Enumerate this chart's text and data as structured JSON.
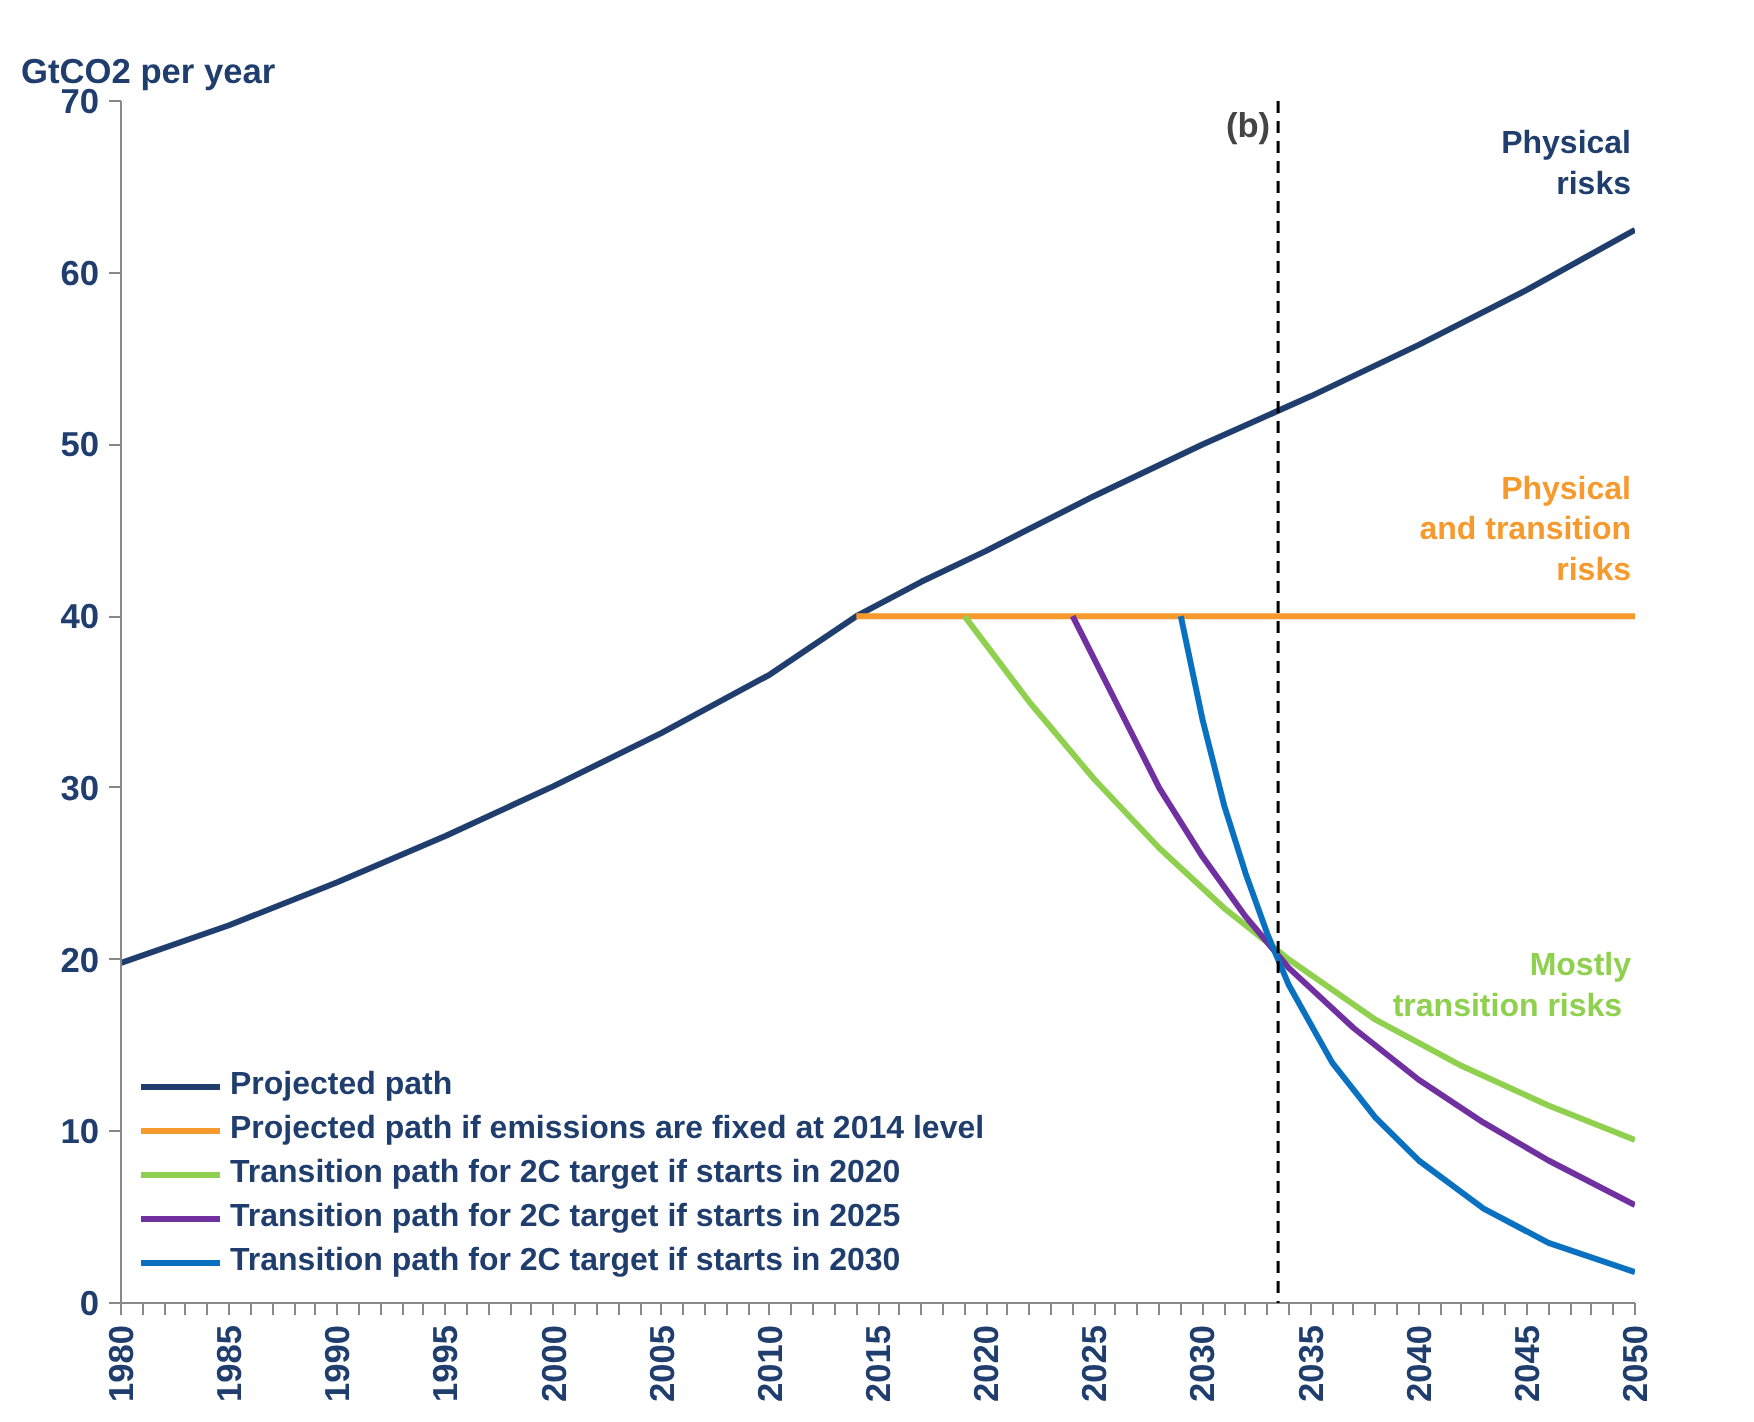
{
  "chart_data": {
    "type": "line",
    "ylabel": "GtCO2 per year",
    "xlim": [
      1980,
      2050
    ],
    "ylim": [
      0,
      70
    ],
    "xticks": [
      1980,
      {
        "value": 1981,
        "label": null
      },
      {
        "value": 1982,
        "label": null
      },
      {
        "value": 1983,
        "label": null
      },
      {
        "value": 1984,
        "label": null
      },
      1985,
      {
        "value": 1986,
        "label": null
      },
      {
        "value": 1987,
        "label": null
      },
      {
        "value": 1988,
        "label": null
      },
      {
        "value": 1989,
        "label": null
      },
      1990,
      {
        "value": 1991,
        "label": null
      },
      {
        "value": 1992,
        "label": null
      },
      {
        "value": 1993,
        "label": null
      },
      {
        "value": 1994,
        "label": null
      },
      1995,
      {
        "value": 1996,
        "label": null
      },
      {
        "value": 1997,
        "label": null
      },
      {
        "value": 1998,
        "label": null
      },
      {
        "value": 1999,
        "label": null
      },
      2000,
      {
        "value": 2001,
        "label": null
      },
      {
        "value": 2002,
        "label": null
      },
      {
        "value": 2003,
        "label": null
      },
      {
        "value": 2004,
        "label": null
      },
      2005,
      {
        "value": 2006,
        "label": null
      },
      {
        "value": 2007,
        "label": null
      },
      {
        "value": 2008,
        "label": null
      },
      {
        "value": 2009,
        "label": null
      },
      2010,
      {
        "value": 2011,
        "label": null
      },
      {
        "value": 2012,
        "label": null
      },
      {
        "value": 2013,
        "label": null
      },
      {
        "value": 2014,
        "label": null
      },
      2015,
      {
        "value": 2016,
        "label": null
      },
      {
        "value": 2017,
        "label": null
      },
      {
        "value": 2018,
        "label": null
      },
      {
        "value": 2019,
        "label": null
      },
      2020,
      {
        "value": 2021,
        "label": null
      },
      {
        "value": 2022,
        "label": null
      },
      {
        "value": 2023,
        "label": null
      },
      {
        "value": 2024,
        "label": null
      },
      2025,
      {
        "value": 2026,
        "label": null
      },
      {
        "value": 2027,
        "label": null
      },
      {
        "value": 2028,
        "label": null
      },
      {
        "value": 2029,
        "label": null
      },
      2030,
      {
        "value": 2031,
        "label": null
      },
      {
        "value": 2032,
        "label": null
      },
      {
        "value": 2033,
        "label": null
      },
      {
        "value": 2034,
        "label": null
      },
      2035,
      {
        "value": 2036,
        "label": null
      },
      {
        "value": 2037,
        "label": null
      },
      {
        "value": 2038,
        "label": null
      },
      {
        "value": 2039,
        "label": null
      },
      2040,
      {
        "value": 2041,
        "label": null
      },
      {
        "value": 2042,
        "label": null
      },
      {
        "value": 2043,
        "label": null
      },
      {
        "value": 2044,
        "label": null
      },
      2045,
      {
        "value": 2046,
        "label": null
      },
      {
        "value": 2047,
        "label": null
      },
      {
        "value": 2048,
        "label": null
      },
      {
        "value": 2049,
        "label": null
      },
      2050
    ],
    "yticks": [
      0,
      10,
      20,
      30,
      40,
      50,
      60,
      70
    ],
    "grid": false,
    "legend": "bottom left",
    "marker": "none",
    "line_style": "solid",
    "series": [
      {
        "name": "Projected path",
        "color": "#1f3e6e",
        "x": [
          1980,
          1985,
          1990,
          1995,
          2000,
          2005,
          2010,
          2014,
          2017,
          2020,
          2025,
          2030,
          2035,
          2040,
          2045,
          2050
        ],
        "values": [
          19.8,
          22,
          24.5,
          27.2,
          30.1,
          33.2,
          36.6,
          40,
          42,
          43.8,
          47,
          50,
          52.8,
          55.8,
          59,
          62.5
        ]
      },
      {
        "name": "Projected path if emissions are fixed at 2014 level",
        "color": "#f79a2e",
        "x": [
          2014,
          2050
        ],
        "values": [
          40,
          40
        ]
      },
      {
        "name": "Transition path for 2C target if starts in 2020",
        "color": "#8fd14f",
        "x": [
          2019,
          2022,
          2025,
          2028,
          2031,
          2034,
          2038,
          2042,
          2046,
          2050
        ],
        "values": [
          40,
          35,
          30.5,
          26.5,
          23,
          20,
          16.5,
          13.8,
          11.5,
          9.5
        ]
      },
      {
        "name": "Transition path for 2C target if starts in 2025",
        "color": "#7030a0",
        "x": [
          2024,
          2026,
          2028,
          2030,
          2032,
          2034,
          2037,
          2040,
          2043,
          2046,
          2050
        ],
        "values": [
          40,
          35,
          30,
          26,
          22.5,
          19.5,
          16,
          13,
          10.5,
          8.3,
          5.7
        ]
      },
      {
        "name": "Transition path for 2C target if starts in 2030",
        "color": "#0a70c0",
        "x": [
          2029,
          2030,
          2031,
          2032,
          2033,
          2034,
          2036,
          2038,
          2040,
          2043,
          2046,
          2050
        ],
        "values": [
          40,
          34,
          29,
          25,
          21.5,
          18.5,
          14,
          10.8,
          8.3,
          5.5,
          3.5,
          1.8
        ]
      }
    ],
    "ref_lines": [
      {
        "axis": "x",
        "value": 2033.5,
        "label": "(b)",
        "color": "#000000",
        "line_style": "dashed"
      }
    ],
    "annotations": [
      "Physical\nrisks",
      "Physical\nand transition\nrisks",
      "Mostly\ntransition  risks"
    ]
  }
}
